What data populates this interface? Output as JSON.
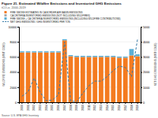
{
  "chart_data": {
    "type": "bar",
    "title": "Figure 21. Estimated Wildfire Emissions and Inventoried GHG Emissions",
    "subtitle": "tCO₂e, 2000-2019",
    "footnote": "Source: U.S. EPA GHG Inventory",
    "ylabel": "WILDFIRE EMISSIONS (MMT CO2E)",
    "y2label": "NET GHG EMISSIONS (MMT CO2E)",
    "categories": [
      "2000",
      "2001",
      "2002",
      "2003",
      "2004",
      "2005",
      "2006",
      "2007",
      "2008",
      "2009",
      "2010",
      "2011",
      "2012",
      "2013",
      "2014",
      "2015",
      "2016",
      "2017",
      "2018",
      "2019"
    ],
    "series": [
      {
        "name": "FIRE SMOKE ESTIMATES IN CA BORDER AIR BASIN EMISSIONS",
        "type": "bar",
        "color": "#f47b20",
        "values": [
          6600,
          6600,
          6600,
          6600,
          6600,
          6600,
          6600,
          8200,
          6100,
          6000,
          6000,
          6000,
          6000,
          6000,
          6000,
          6000,
          5900,
          5900,
          6200,
          6100
        ]
      },
      {
        "name": "CA CRITERIA INVENTORIED EMISSIONS (NOT INCLUDING WILDFIRES)",
        "type": "bar",
        "color": "#aaaaaa",
        "values": [
          null,
          null,
          null,
          null,
          null,
          null,
          null,
          null,
          null,
          null,
          null,
          null,
          null,
          null,
          null,
          null,
          null,
          null,
          null,
          null
        ]
      },
      {
        "name": "FIRE SMOKE + CA CRITERIA INVENTORIED EMISSIONS (INCLUDING WILDFIRE CONTRIBUTIONS)",
        "type": "bar",
        "color": "#5bafd6",
        "values": [
          150,
          150,
          150,
          150,
          150,
          150,
          150,
          150,
          150,
          150,
          150,
          150,
          150,
          150,
          150,
          150,
          150,
          150,
          850,
          250
        ]
      },
      {
        "name": "NET GHG EMISSIONS / GHG INVENTORIED PER TON",
        "type": "line",
        "axis": "y2",
        "color": "#3a7ca8",
        "line_style": "dashed",
        "values": [
          400,
          700,
          1600,
          650,
          100,
          150,
          500,
          4000,
          80,
          30,
          600,
          1100,
          1400,
          1400,
          1700,
          2100,
          2400,
          2300,
          1700,
          4200
        ]
      }
    ],
    "stacked": true,
    "ylim": [
      0,
      10000
    ],
    "yticks": [
      0,
      2000,
      4000,
      6000,
      8000,
      10000
    ],
    "y2lim": [
      0,
      5000
    ],
    "y2ticks": [
      0,
      1000,
      2000,
      3000,
      4000,
      5000
    ],
    "grid": true,
    "legend": "top left"
  }
}
